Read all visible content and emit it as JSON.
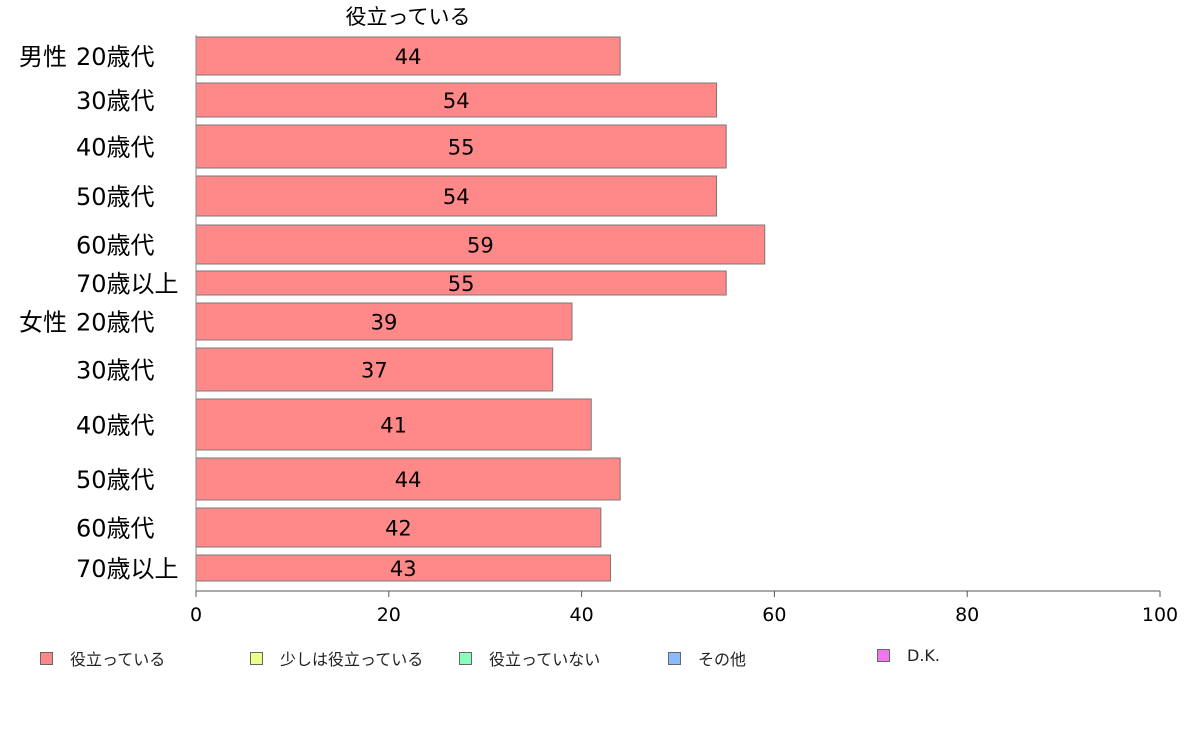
{
  "chart_data": {
    "type": "bar",
    "orientation": "horizontal",
    "title": "役立っている",
    "groups": [
      {
        "label": "男性",
        "categories": [
          "20歳代",
          "30歳代",
          "40歳代",
          "50歳代",
          "60歳代",
          "70歳以上"
        ]
      },
      {
        "label": "女性",
        "categories": [
          "20歳代",
          "30歳代",
          "40歳代",
          "50歳代",
          "60歳代",
          "70歳以上"
        ]
      }
    ],
    "series": [
      {
        "name": "役立っている",
        "color": "#ff8888",
        "values": [
          44,
          54,
          55,
          54,
          59,
          55,
          39,
          37,
          41,
          44,
          42,
          43
        ]
      }
    ],
    "data_labels": [
      "44",
      "54",
      "55",
      "54",
      "59",
      "55",
      "39",
      "37",
      "41",
      "44",
      "42",
      "43"
    ],
    "xlim": [
      0,
      100
    ],
    "x_ticks": [
      0,
      20,
      40,
      60,
      80,
      100
    ],
    "x_tick_labels": [
      "0",
      "20",
      "40",
      "60",
      "80",
      "100"
    ],
    "legend": {
      "position": "bottom",
      "items": [
        {
          "label": "役立っている",
          "color": "#ff8888"
        },
        {
          "label": "少しは役立っている",
          "color": "#eeff88"
        },
        {
          "label": "役立っていない",
          "color": "#88ffbb"
        },
        {
          "label": "その他",
          "color": "#88bbff"
        },
        {
          "label": "D.K.",
          "color": "#ee77ee"
        }
      ]
    },
    "grid": false
  }
}
